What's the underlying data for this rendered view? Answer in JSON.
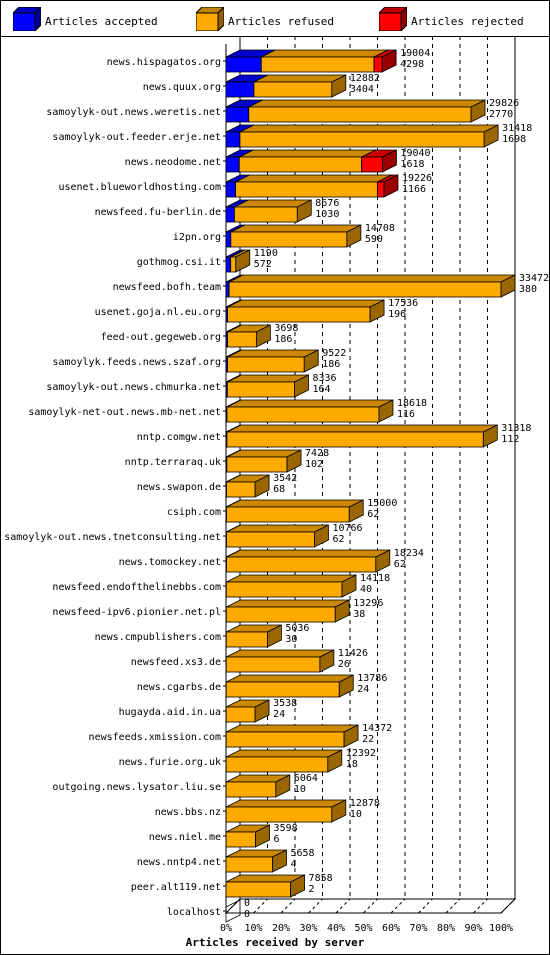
{
  "legend": [
    {
      "label": "Articles accepted",
      "color": "#0000ff"
    },
    {
      "label": "Articles refused",
      "color": "#ffaa00"
    },
    {
      "label": "Articles rejected",
      "color": "#ff0000"
    }
  ],
  "chart_data": {
    "type": "bar",
    "orientation": "horizontal",
    "stacked": true,
    "xlabel": "Articles received by server",
    "x_tick_labels": [
      "0%",
      "10%",
      "20%",
      "30%",
      "40%",
      "50%",
      "60%",
      "70%",
      "80%",
      "90%",
      "100%"
    ],
    "xlim": [
      0,
      100
    ],
    "max_total": 33472,
    "grid": true,
    "legend_position": "top",
    "series_colors": {
      "accepted": "#0000ff",
      "refused": "#ffaa00",
      "rejected": "#ff0000"
    },
    "rows": [
      {
        "server": "news.hispagatos.org",
        "total": 19004,
        "accepted": 4298,
        "refused": 13732,
        "rejected": 974,
        "label_total": "19004",
        "label_accepted": "4298"
      },
      {
        "server": "news.quux.org",
        "total": 12882,
        "accepted": 3404,
        "refused": 9478,
        "rejected": 0,
        "label_total": "12882",
        "label_accepted": "3404"
      },
      {
        "server": "samoylyk-out.news.weretis.net",
        "total": 29826,
        "accepted": 2770,
        "refused": 27056,
        "rejected": 0,
        "label_total": "29826",
        "label_accepted": "2770"
      },
      {
        "server": "samoylyk-out.feeder.erje.net",
        "total": 31418,
        "accepted": 1698,
        "refused": 29720,
        "rejected": 0,
        "label_total": "31418",
        "label_accepted": "1698"
      },
      {
        "server": "news.neodome.net",
        "total": 19040,
        "accepted": 1618,
        "refused": 14900,
        "rejected": 2522,
        "label_total": "19040",
        "label_accepted": "1618"
      },
      {
        "server": "usenet.blueworldhosting.com",
        "total": 19226,
        "accepted": 1166,
        "refused": 17260,
        "rejected": 800,
        "label_total": "19226",
        "label_accepted": "1166"
      },
      {
        "server": "newsfeed.fu-berlin.de",
        "total": 8676,
        "accepted": 1030,
        "refused": 7646,
        "rejected": 0,
        "label_total": "8676",
        "label_accepted": "1030"
      },
      {
        "server": "i2pn.org",
        "total": 14708,
        "accepted": 590,
        "refused": 14118,
        "rejected": 0,
        "label_total": "14708",
        "label_accepted": "590"
      },
      {
        "server": "gothmog.csi.it",
        "total": 1190,
        "accepted": 572,
        "refused": 618,
        "rejected": 0,
        "label_total": "1190",
        "label_accepted": "572"
      },
      {
        "server": "newsfeed.bofh.team",
        "total": 33472,
        "accepted": 380,
        "refused": 33092,
        "rejected": 0,
        "label_total": "33472",
        "label_accepted": "380"
      },
      {
        "server": "usenet.goja.nl.eu.org",
        "total": 17536,
        "accepted": 196,
        "refused": 17340,
        "rejected": 0,
        "label_total": "17536",
        "label_accepted": "196"
      },
      {
        "server": "feed-out.gegeweb.org",
        "total": 3698,
        "accepted": 186,
        "refused": 3512,
        "rejected": 0,
        "label_total": "3698",
        "label_accepted": "186"
      },
      {
        "server": "samoylyk.feeds.news.szaf.org",
        "total": 9522,
        "accepted": 186,
        "refused": 9336,
        "rejected": 0,
        "label_total": "9522",
        "label_accepted": "186"
      },
      {
        "server": "samoylyk-out.news.chmurka.net",
        "total": 8336,
        "accepted": 164,
        "refused": 8172,
        "rejected": 0,
        "label_total": "8336",
        "label_accepted": "164"
      },
      {
        "server": "samoylyk-net-out.news.mb-net.net",
        "total": 18618,
        "accepted": 116,
        "refused": 18502,
        "rejected": 0,
        "label_total": "18618",
        "label_accepted": "116"
      },
      {
        "server": "nntp.comgw.net",
        "total": 31318,
        "accepted": 112,
        "refused": 31206,
        "rejected": 0,
        "label_total": "31318",
        "label_accepted": "112"
      },
      {
        "server": "nntp.terraraq.uk",
        "total": 7428,
        "accepted": 102,
        "refused": 7326,
        "rejected": 0,
        "label_total": "7428",
        "label_accepted": "102"
      },
      {
        "server": "news.swapon.de",
        "total": 3542,
        "accepted": 68,
        "refused": 3474,
        "rejected": 0,
        "label_total": "3542",
        "label_accepted": "68"
      },
      {
        "server": "csiph.com",
        "total": 15000,
        "accepted": 62,
        "refused": 14938,
        "rejected": 0,
        "label_total": "15000",
        "label_accepted": "62"
      },
      {
        "server": "samoylyk-out.news.tnetconsulting.net",
        "total": 10766,
        "accepted": 62,
        "refused": 10704,
        "rejected": 0,
        "label_total": "10766",
        "label_accepted": "62"
      },
      {
        "server": "news.tomockey.net",
        "total": 18234,
        "accepted": 62,
        "refused": 18172,
        "rejected": 0,
        "label_total": "18234",
        "label_accepted": "62"
      },
      {
        "server": "newsfeed.endofthelinebbs.com",
        "total": 14118,
        "accepted": 40,
        "refused": 14078,
        "rejected": 0,
        "label_total": "14118",
        "label_accepted": "40"
      },
      {
        "server": "newsfeed-ipv6.pionier.net.pl",
        "total": 13296,
        "accepted": 38,
        "refused": 13258,
        "rejected": 0,
        "label_total": "13296",
        "label_accepted": "38"
      },
      {
        "server": "news.cmpublishers.com",
        "total": 5036,
        "accepted": 30,
        "refused": 5006,
        "rejected": 0,
        "label_total": "5036",
        "label_accepted": "30"
      },
      {
        "server": "newsfeed.xs3.de",
        "total": 11426,
        "accepted": 26,
        "refused": 11400,
        "rejected": 0,
        "label_total": "11426",
        "label_accepted": "26"
      },
      {
        "server": "news.cgarbs.de",
        "total": 13786,
        "accepted": 24,
        "refused": 13762,
        "rejected": 0,
        "label_total": "13786",
        "label_accepted": "24"
      },
      {
        "server": "hugayda.aid.in.ua",
        "total": 3538,
        "accepted": 24,
        "refused": 3514,
        "rejected": 0,
        "label_total": "3538",
        "label_accepted": "24"
      },
      {
        "server": "newsfeeds.xmission.com",
        "total": 14372,
        "accepted": 22,
        "refused": 14350,
        "rejected": 0,
        "label_total": "14372",
        "label_accepted": "22"
      },
      {
        "server": "news.furie.org.uk",
        "total": 12392,
        "accepted": 18,
        "refused": 12374,
        "rejected": 0,
        "label_total": "12392",
        "label_accepted": "18"
      },
      {
        "server": "outgoing.news.lysator.liu.se",
        "total": 6064,
        "accepted": 10,
        "refused": 6054,
        "rejected": 0,
        "label_total": "6064",
        "label_accepted": "10"
      },
      {
        "server": "news.bbs.nz",
        "total": 12878,
        "accepted": 10,
        "refused": 12868,
        "rejected": 0,
        "label_total": "12878",
        "label_accepted": "10"
      },
      {
        "server": "news.niel.me",
        "total": 3598,
        "accepted": 6,
        "refused": 3592,
        "rejected": 0,
        "label_total": "3598",
        "label_accepted": "6"
      },
      {
        "server": "news.nntp4.net",
        "total": 5658,
        "accepted": 4,
        "refused": 5654,
        "rejected": 0,
        "label_total": "5658",
        "label_accepted": "4"
      },
      {
        "server": "peer.alt119.net",
        "total": 7858,
        "accepted": 2,
        "refused": 7856,
        "rejected": 0,
        "label_total": "7858",
        "label_accepted": "2"
      },
      {
        "server": "localhost",
        "total": 0,
        "accepted": 0,
        "refused": 0,
        "rejected": 0,
        "label_total": "0",
        "label_accepted": "0"
      }
    ]
  }
}
